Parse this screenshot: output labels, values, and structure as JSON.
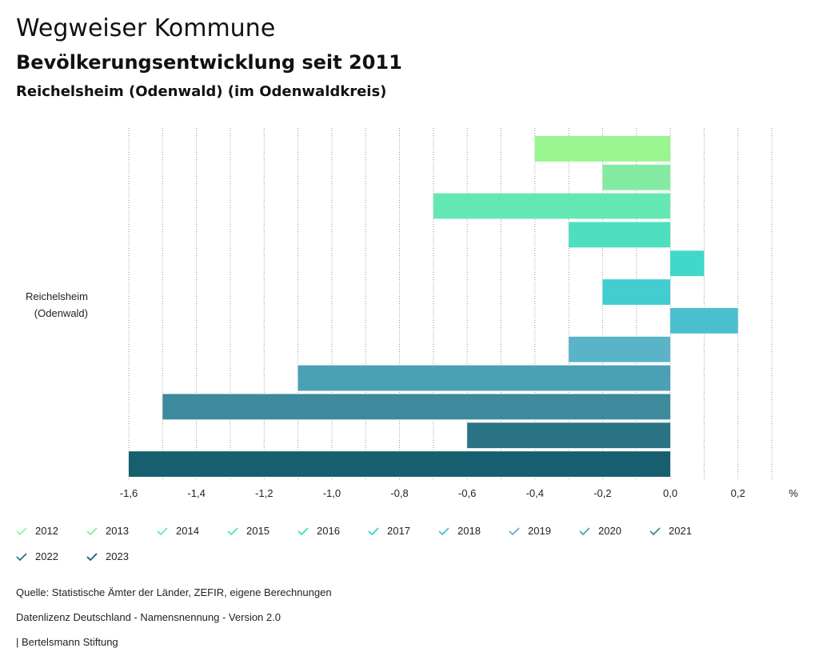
{
  "header": {
    "title": "Wegweiser Kommune",
    "subtitle": "Bevölkerungsentwicklung seit 2011",
    "region": "Reichelsheim (Odenwald) (im Odenwaldkreis)"
  },
  "chart_data": {
    "type": "bar",
    "orientation": "horizontal",
    "categories": [
      "Reichelsheim (Odenwald)"
    ],
    "category_label_lines": [
      "Reichelsheim",
      "(Odenwald)"
    ],
    "series": [
      {
        "name": "2012",
        "values": [
          -0.4
        ],
        "color": "#98f58f"
      },
      {
        "name": "2013",
        "values": [
          -0.2
        ],
        "color": "#83eba1"
      },
      {
        "name": "2014",
        "values": [
          -0.7
        ],
        "color": "#64e8b3"
      },
      {
        "name": "2015",
        "values": [
          -0.3
        ],
        "color": "#4edfc0"
      },
      {
        "name": "2016",
        "values": [
          0.1
        ],
        "color": "#40d8c8"
      },
      {
        "name": "2017",
        "values": [
          -0.2
        ],
        "color": "#42cdd0"
      },
      {
        "name": "2018",
        "values": [
          0.2
        ],
        "color": "#4cbfcf"
      },
      {
        "name": "2019",
        "values": [
          -0.3
        ],
        "color": "#5bb3c8"
      },
      {
        "name": "2020",
        "values": [
          -1.1
        ],
        "color": "#4aa0b4"
      },
      {
        "name": "2021",
        "values": [
          -1.5
        ],
        "color": "#3c8a9c"
      },
      {
        "name": "2022",
        "values": [
          -0.6
        ],
        "color": "#2a7385"
      },
      {
        "name": "2023",
        "values": [
          -1.6
        ],
        "color": "#175f6e"
      }
    ],
    "xlim": [
      -1.6,
      0.3
    ],
    "xticks": [
      "-1,6",
      "-1,4",
      "-1,2",
      "-1,0",
      "-0,8",
      "-0,6",
      "-0,4",
      "-0,2",
      "0,0",
      "0,2"
    ],
    "xtick_values": [
      -1.6,
      -1.4,
      -1.2,
      -1.0,
      -0.8,
      -0.6,
      -0.4,
      -0.2,
      0.0,
      0.2
    ],
    "unit_label": "%",
    "grid": true
  },
  "footer": {
    "source": "Quelle: Statistische Ämter der Länder, ZEFIR, eigene Berechnungen",
    "license": "Datenlizenz Deutschland - Namensnennung - Version 2.0",
    "publisher": "| Bertelsmann Stiftung"
  }
}
